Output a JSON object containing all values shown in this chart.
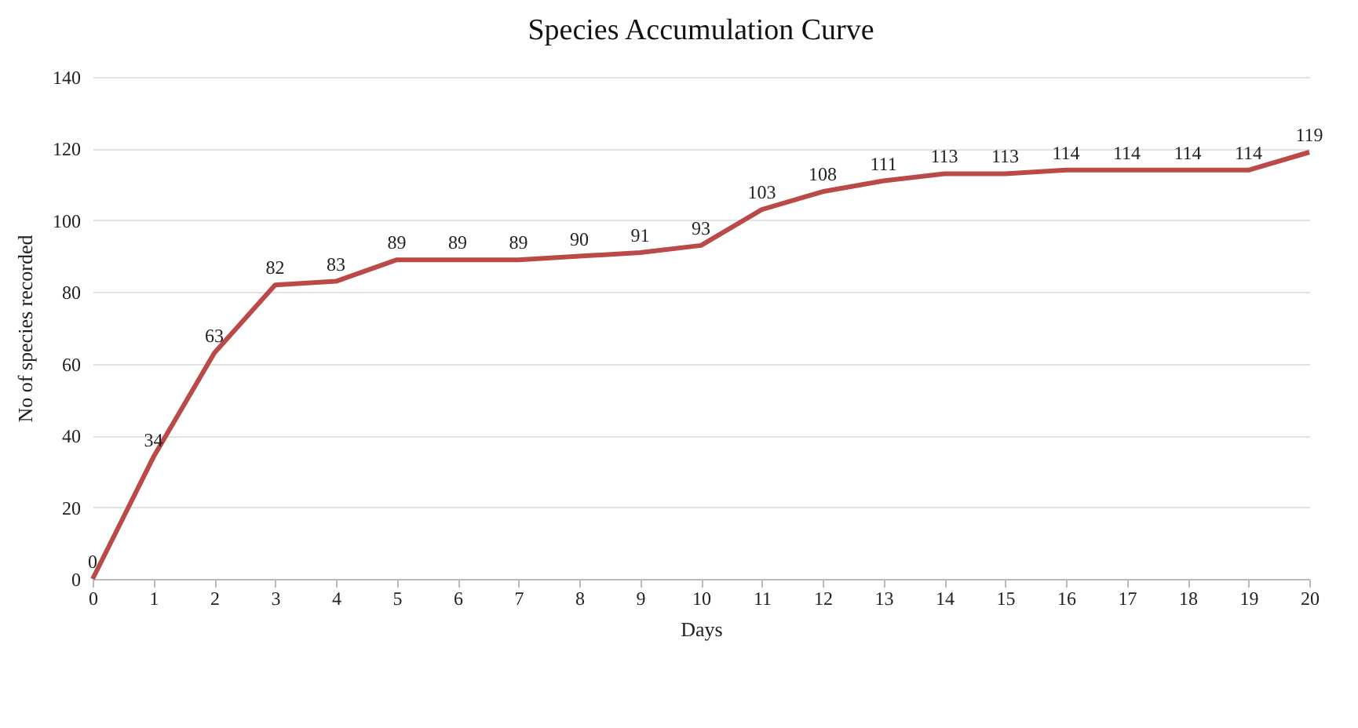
{
  "chart_data": {
    "type": "line",
    "title": "Species Accumulation Curve",
    "xlabel": "Days",
    "ylabel": "No of species recorded",
    "x": [
      0,
      1,
      2,
      3,
      4,
      5,
      6,
      7,
      8,
      9,
      10,
      11,
      12,
      13,
      14,
      15,
      16,
      17,
      18,
      19,
      20
    ],
    "series": [
      {
        "color": "#b94a48",
        "values": [
          0,
          34,
          63,
          82,
          83,
          89,
          89,
          89,
          90,
          91,
          93,
          103,
          108,
          111,
          113,
          113,
          114,
          114,
          114,
          114,
          119
        ]
      }
    ],
    "xlim": [
      0,
      20
    ],
    "xticks": [
      0,
      1,
      2,
      3,
      4,
      5,
      6,
      7,
      8,
      9,
      10,
      11,
      12,
      13,
      14,
      15,
      16,
      17,
      18,
      19,
      20
    ],
    "ylim": [
      0,
      140
    ],
    "yticks": [
      0,
      20,
      40,
      60,
      80,
      100,
      120,
      140
    ],
    "grid": "y",
    "data_labels": true,
    "legend": false,
    "marker": "none",
    "line_style": "solid"
  }
}
